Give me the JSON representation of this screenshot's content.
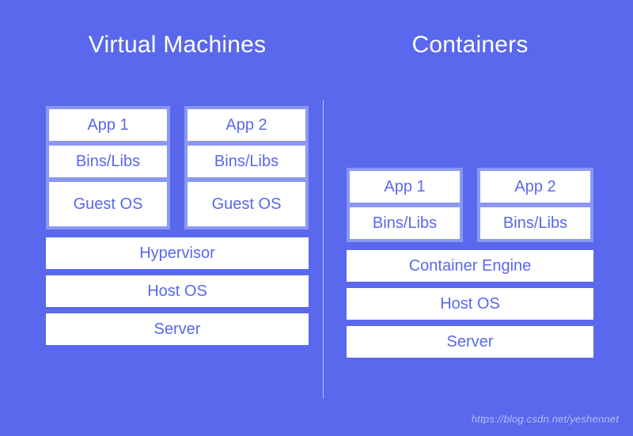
{
  "background_color": "#5968ec",
  "box_background": "#ffffff",
  "box_text_color": "#5968ec",
  "stack_border_color": "#8b98f3",
  "title_color": "#ffffff",
  "title_fontsize": 30,
  "cell_fontsize": 20,
  "divider_color": "rgba(255,255,255,0.6)",
  "left": {
    "title": "Virtual Machines",
    "stacks": [
      {
        "app": "App 1",
        "bins": "Bins/Libs",
        "os": "Guest OS"
      },
      {
        "app": "App 2",
        "bins": "Bins/Libs",
        "os": "Guest OS"
      }
    ],
    "layers": {
      "hypervisor": "Hypervisor",
      "host_os": "Host OS",
      "server": "Server"
    }
  },
  "right": {
    "title": "Containers",
    "stacks": [
      {
        "app": "App 1",
        "bins": "Bins/Libs"
      },
      {
        "app": "App 2",
        "bins": "Bins/Libs"
      }
    ],
    "layers": {
      "engine": "Container Engine",
      "host_os": "Host OS",
      "server": "Server"
    }
  },
  "watermark": "https://blog.csdn.net/yeshennet"
}
